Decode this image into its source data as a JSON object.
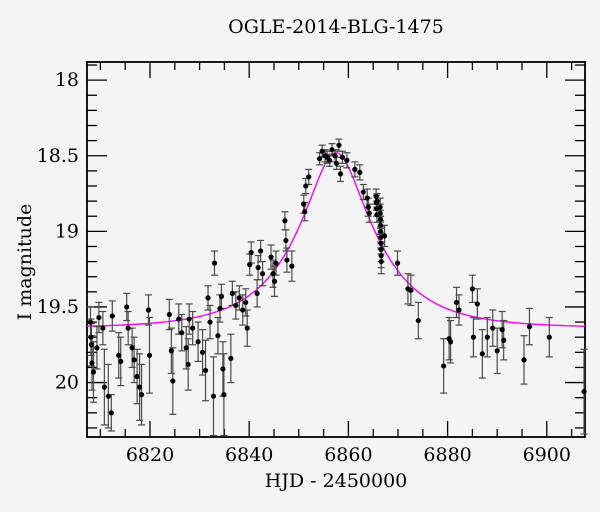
{
  "chart_data": {
    "type": "scatter",
    "title": "OGLE-2014-BLG-1475",
    "xlabel": "HJD - 2450000",
    "ylabel": "I magnitude",
    "x_axis": {
      "min": 6807.3,
      "max": 6907.7,
      "major_ticks": [
        6820,
        6840,
        6860,
        6880,
        6900
      ],
      "tick_labels": [
        "6820",
        "6840",
        "6860",
        "6880",
        "6900"
      ],
      "minor_tick_step": 5
    },
    "y_axis": {
      "min": 17.88,
      "max": 20.36,
      "inverted": true,
      "major_ticks": [
        18,
        18.5,
        19,
        19.5,
        20
      ],
      "tick_labels": [
        "18",
        "18.5",
        "19",
        "19.5",
        "20"
      ],
      "minor_tick_step": 0.1
    },
    "model_curve": {
      "name": "paczynski-microlensing-fit",
      "I0": 19.64,
      "t0": 6857.5,
      "tE": 15.0,
      "u0": 0.36
    },
    "colors": {
      "background": "#f4f4f4",
      "axis": "#000000",
      "curve": "#ff00ff",
      "point": "#000000",
      "error_bar": "#4a4a4a"
    },
    "points": [
      [
        6808.0,
        19.6,
        0.1
      ],
      [
        6808.1,
        19.7,
        0.12
      ],
      [
        6808.2,
        19.75,
        0.14
      ],
      [
        6808.3,
        19.87,
        0.18
      ],
      [
        6808.6,
        19.93,
        0.2
      ],
      [
        6809.3,
        19.77,
        0.14
      ],
      [
        6809.7,
        19.57,
        0.1
      ],
      [
        6810.5,
        19.64,
        0.11
      ],
      [
        6810.8,
        20.03,
        0.25
      ],
      [
        6811.6,
        20.09,
        0.21
      ],
      [
        6812.2,
        20.2,
        0.12
      ],
      [
        6812.4,
        19.56,
        0.1
      ],
      [
        6813.7,
        19.82,
        0.15
      ],
      [
        6814.1,
        19.86,
        0.16
      ],
      [
        6815.3,
        19.5,
        0.09
      ],
      [
        6815.6,
        19.64,
        0.11
      ],
      [
        6816.4,
        19.77,
        0.13
      ],
      [
        6816.8,
        19.85,
        0.15
      ],
      [
        6817.4,
        19.96,
        0.18
      ],
      [
        6817.9,
        20.03,
        0.22
      ],
      [
        6818.3,
        20.08,
        0.2
      ],
      [
        6819.7,
        19.52,
        0.1
      ],
      [
        6819.9,
        19.82,
        0.25
      ],
      [
        6823.9,
        19.55,
        0.1
      ],
      [
        6824.3,
        19.79,
        0.15
      ],
      [
        6824.6,
        19.99,
        0.22
      ],
      [
        6825.8,
        19.58,
        0.1
      ],
      [
        6826.4,
        19.67,
        0.12
      ],
      [
        6827.3,
        19.77,
        0.14
      ],
      [
        6827.7,
        19.88,
        0.17
      ],
      [
        6827.9,
        19.58,
        0.1
      ],
      [
        6828.6,
        19.64,
        0.11
      ],
      [
        6829.7,
        19.73,
        0.13
      ],
      [
        6830.6,
        19.8,
        0.15
      ],
      [
        6831.2,
        19.92,
        0.2
      ],
      [
        6831.7,
        19.44,
        0.08
      ],
      [
        6832.1,
        19.6,
        0.11
      ],
      [
        6832.8,
        20.09,
        0.26
      ],
      [
        6833.0,
        19.21,
        0.08
      ],
      [
        6833.7,
        19.69,
        0.12
      ],
      [
        6834.1,
        19.51,
        0.09
      ],
      [
        6834.4,
        19.43,
        0.08
      ],
      [
        6834.7,
        19.91,
        0.18
      ],
      [
        6834.9,
        20.08,
        0.27
      ],
      [
        6836.3,
        19.84,
        0.16
      ],
      [
        6836.6,
        19.41,
        0.08
      ],
      [
        6837.3,
        19.49,
        0.09
      ],
      [
        6838.0,
        19.44,
        0.08
      ],
      [
        6838.7,
        19.52,
        0.1
      ],
      [
        6839.3,
        19.47,
        0.09
      ],
      [
        6839.6,
        19.64,
        0.12
      ],
      [
        6840.1,
        19.22,
        0.07
      ],
      [
        6840.4,
        19.14,
        0.07
      ],
      [
        6841.6,
        19.41,
        0.09
      ],
      [
        6841.8,
        19.24,
        0.08
      ],
      [
        6842.3,
        19.13,
        0.07
      ],
      [
        6842.7,
        19.28,
        0.08
      ],
      [
        6844.4,
        19.17,
        0.08
      ],
      [
        6844.8,
        19.28,
        0.09
      ],
      [
        6845.1,
        19.33,
        0.1
      ],
      [
        6845.4,
        19.21,
        0.08
      ],
      [
        6847.2,
        18.93,
        0.06
      ],
      [
        6847.4,
        19.06,
        0.07
      ],
      [
        6847.6,
        19.19,
        0.08
      ],
      [
        6848.6,
        19.23,
        0.1
      ],
      [
        6851.0,
        18.82,
        0.06
      ],
      [
        6851.2,
        18.87,
        0.06
      ],
      [
        6851.4,
        18.7,
        0.05
      ],
      [
        6852.0,
        18.64,
        0.05
      ],
      [
        6854.2,
        18.52,
        0.04
      ],
      [
        6854.7,
        18.47,
        0.04
      ],
      [
        6855.3,
        18.5,
        0.04
      ],
      [
        6855.7,
        18.51,
        0.04
      ],
      [
        6856.2,
        18.53,
        0.04
      ],
      [
        6856.7,
        18.46,
        0.04
      ],
      [
        6857.3,
        18.5,
        0.04
      ],
      [
        6857.6,
        18.55,
        0.04
      ],
      [
        6858.1,
        18.43,
        0.04
      ],
      [
        6858.4,
        18.62,
        0.05
      ],
      [
        6858.8,
        18.51,
        0.04
      ],
      [
        6859.7,
        18.53,
        0.05
      ],
      [
        6861.3,
        18.59,
        0.05
      ],
      [
        6862.3,
        18.61,
        0.05
      ],
      [
        6863.0,
        18.74,
        0.05
      ],
      [
        6863.8,
        18.78,
        0.06
      ],
      [
        6864.0,
        18.84,
        0.06
      ],
      [
        6864.2,
        18.88,
        0.06
      ],
      [
        6865.6,
        18.77,
        0.05
      ],
      [
        6865.65,
        18.81,
        0.05
      ],
      [
        6865.7,
        18.85,
        0.05
      ],
      [
        6865.75,
        18.89,
        0.05
      ],
      [
        6865.8,
        18.8,
        0.05
      ],
      [
        6866.4,
        18.84,
        0.06
      ],
      [
        6866.42,
        18.88,
        0.06
      ],
      [
        6866.45,
        18.92,
        0.06
      ],
      [
        6866.48,
        18.96,
        0.06
      ],
      [
        6866.5,
        19.0,
        0.07
      ],
      [
        6866.52,
        19.04,
        0.07
      ],
      [
        6866.55,
        19.08,
        0.07
      ],
      [
        6866.58,
        19.12,
        0.08
      ],
      [
        6866.6,
        19.16,
        0.08
      ],
      [
        6866.62,
        19.2,
        0.08
      ],
      [
        6867.3,
        19.03,
        0.07
      ],
      [
        6869.9,
        19.21,
        0.08
      ],
      [
        6872.0,
        19.38,
        0.1
      ],
      [
        6872.6,
        19.39,
        0.1
      ],
      [
        6874.1,
        19.59,
        0.12
      ],
      [
        6879.2,
        19.89,
        0.18
      ],
      [
        6880.3,
        19.71,
        0.14
      ],
      [
        6880.6,
        19.73,
        0.14
      ],
      [
        6881.8,
        19.47,
        0.1
      ],
      [
        6882.3,
        19.52,
        0.1
      ],
      [
        6885.0,
        19.38,
        0.09
      ],
      [
        6885.2,
        19.7,
        0.13
      ],
      [
        6886.0,
        19.48,
        0.1
      ],
      [
        6887.0,
        19.81,
        0.16
      ],
      [
        6888.0,
        19.7,
        0.13
      ],
      [
        6889.1,
        19.64,
        0.12
      ],
      [
        6890.0,
        19.79,
        0.15
      ],
      [
        6891.0,
        19.65,
        0.12
      ],
      [
        6891.3,
        19.72,
        0.13
      ],
      [
        6895.4,
        19.85,
        0.16
      ],
      [
        6896.5,
        19.63,
        0.12
      ],
      [
        6900.5,
        19.7,
        0.13
      ],
      [
        6907.5,
        20.06,
        0.28
      ]
    ]
  }
}
